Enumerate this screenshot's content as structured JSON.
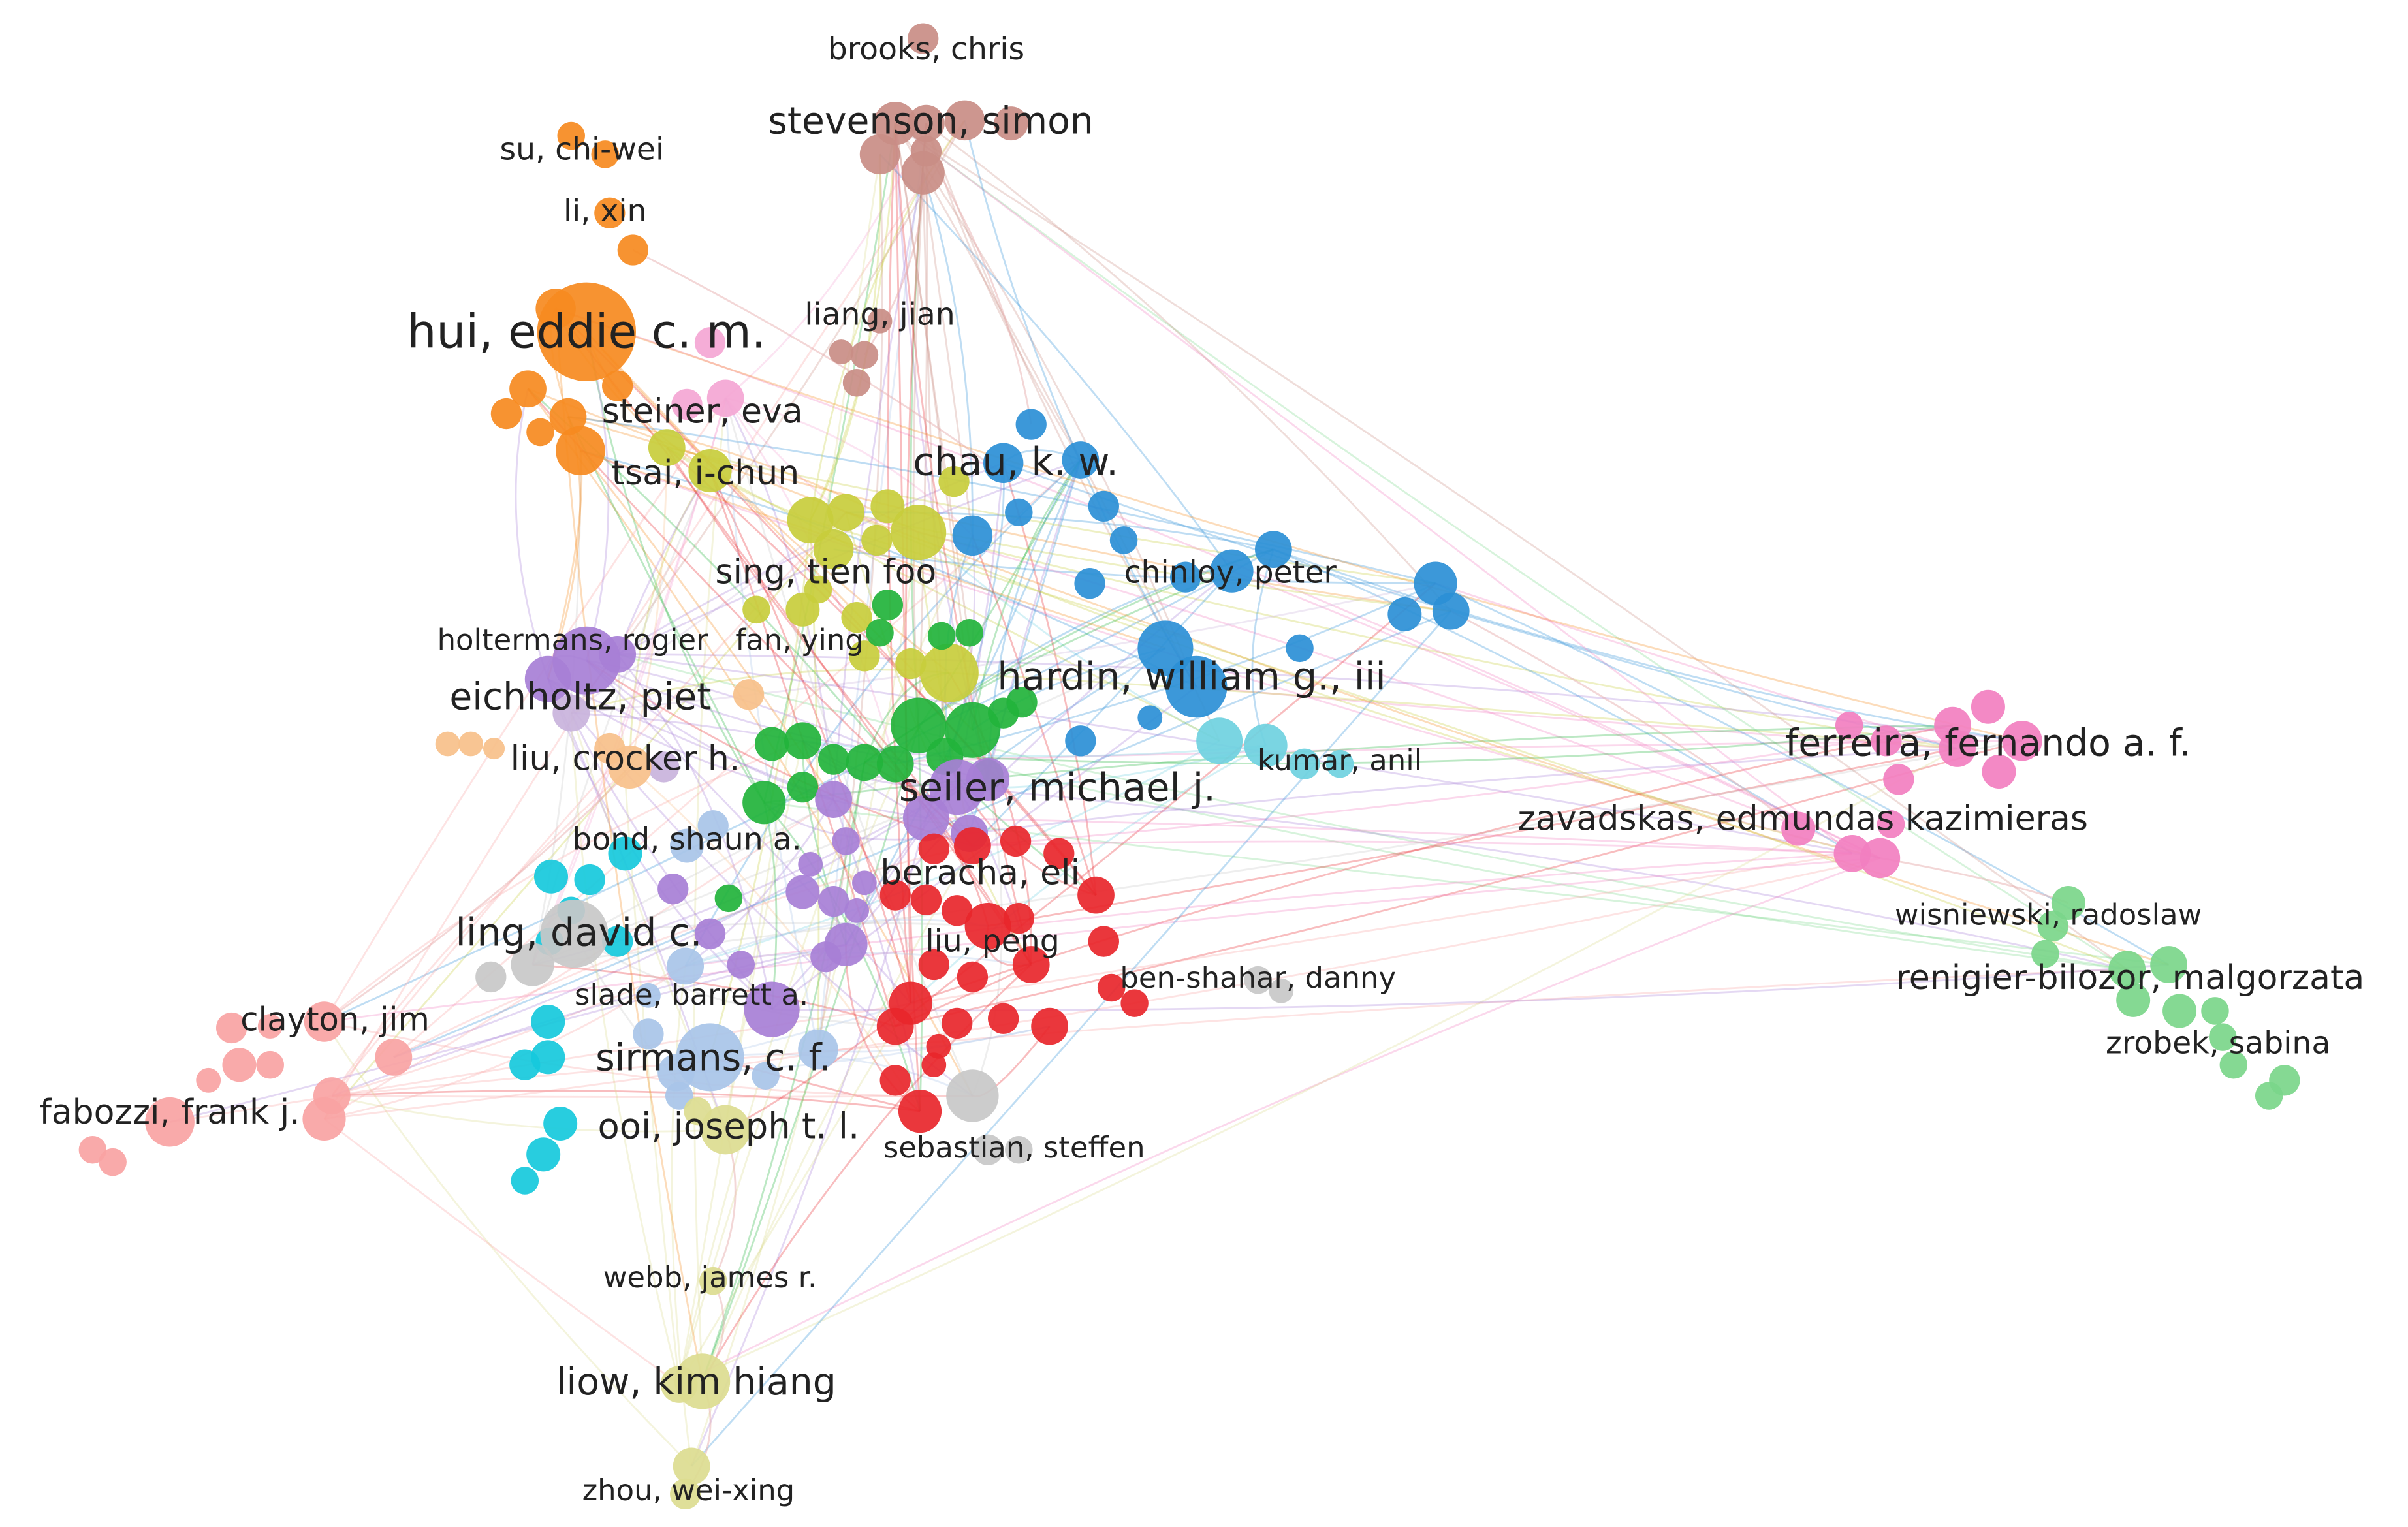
{
  "nodes": [
    {
      "label": "brooks, chris"
    },
    {
      "label": "stevenson, simon"
    },
    {
      "label": "su, chi-wei"
    },
    {
      "label": "li, xin"
    },
    {
      "label": "hui, eddie c. m."
    },
    {
      "label": "liang, jian"
    },
    {
      "label": "steiner, eva"
    },
    {
      "label": "tsai, i-chun"
    },
    {
      "label": "chau, k. w."
    },
    {
      "label": "sing, tien foo"
    },
    {
      "label": "chinloy, peter"
    },
    {
      "label": "holtermans, rogier"
    },
    {
      "label": "fan, ying"
    },
    {
      "label": "hardin, william g., iii"
    },
    {
      "label": "eichholtz, piet"
    },
    {
      "label": "ferreira, fernando a. f."
    },
    {
      "label": "liu, crocker h."
    },
    {
      "label": "kumar, anil"
    },
    {
      "label": "seiler, michael j."
    },
    {
      "label": "zavadskas, edmundas kazimieras"
    },
    {
      "label": "bond, shaun a."
    },
    {
      "label": "beracha, eli"
    },
    {
      "label": "wisniewski, radoslaw"
    },
    {
      "label": "ling, david c."
    },
    {
      "label": "liu, peng"
    },
    {
      "label": "ben-shahar, danny"
    },
    {
      "label": "renigier-bilozor, malgorzata"
    },
    {
      "label": "slade, barrett a."
    },
    {
      "label": "clayton, jim"
    },
    {
      "label": "sirmans, c. f."
    },
    {
      "label": "zrobek, sabina"
    },
    {
      "label": "fabozzi, frank j."
    },
    {
      "label": "ooi, joseph t. l."
    },
    {
      "label": "sebastian, steffen"
    },
    {
      "label": "webb, james r."
    },
    {
      "label": "liow, kim hiang"
    },
    {
      "label": "zhou, wei-xing"
    }
  ]
}
